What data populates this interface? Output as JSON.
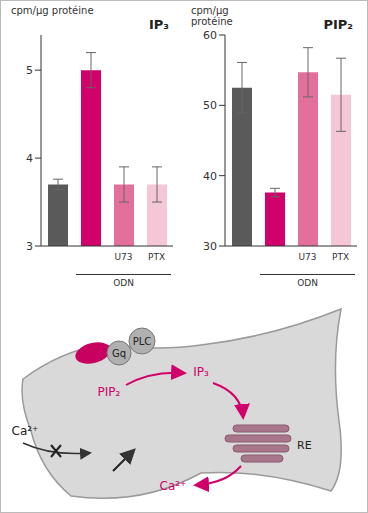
{
  "chart_data": [
    {
      "type": "bar",
      "title": "IP₃",
      "y_label": "cpm/µg protéine",
      "categories": [
        null,
        null,
        "U73",
        "PTX"
      ],
      "values": [
        3.7,
        5.0,
        3.7,
        3.7
      ],
      "error": [
        0.06,
        0.2,
        0.2,
        0.2
      ],
      "colors": [
        "#5a5a5a",
        "#d1006a",
        "#e2709b",
        "#f4c6d6"
      ],
      "ylim": [
        3,
        5.4
      ],
      "yticks": [
        3,
        4,
        5
      ],
      "annotation": "ODN"
    },
    {
      "type": "bar",
      "title": "PIP₂",
      "y_label": "cpm/µg protéine",
      "categories": [
        null,
        null,
        "U73",
        "PTX"
      ],
      "values": [
        52.5,
        37.6,
        54.7,
        51.5
      ],
      "error": [
        3.6,
        0.6,
        3.5,
        5.2
      ],
      "colors": [
        "#5a5a5a",
        "#d1006a",
        "#e2709b",
        "#f4c6d6"
      ],
      "ylim": [
        30,
        60
      ],
      "yticks": [
        30,
        40,
        50,
        60
      ],
      "annotation": "ODN"
    }
  ],
  "diagram": {
    "gq": "Gq",
    "plc": "PLC",
    "ip3": "IP₃",
    "pip2": "PIP₂",
    "re": "RE",
    "ca_out": "Ca²⁺",
    "ca_in": "Ca²⁺"
  }
}
